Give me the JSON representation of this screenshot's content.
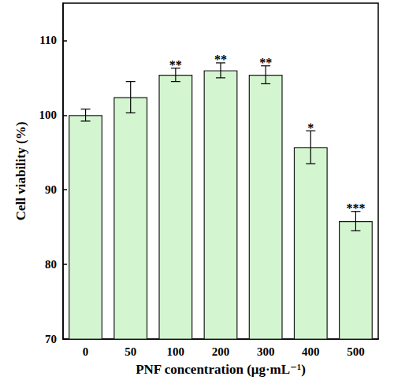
{
  "chart_data": {
    "type": "bar",
    "x_label": "PNF concentration (μg·mL⁻¹)",
    "y_label": "Cell viability (%)",
    "categories": [
      "0",
      "50",
      "100",
      "200",
      "300",
      "400",
      "500"
    ],
    "values": [
      100.0,
      102.4,
      105.4,
      106.0,
      105.4,
      95.7,
      85.8
    ],
    "errors": [
      0.8,
      2.1,
      0.9,
      1.0,
      1.2,
      2.2,
      1.3
    ],
    "annotations": [
      null,
      null,
      "**",
      "**",
      "**",
      "*",
      "***"
    ],
    "color": "#d3f5cf",
    "ylim": [
      70,
      115
    ],
    "yticks": [
      70,
      80,
      90,
      100,
      110
    ],
    "grid": false
  }
}
